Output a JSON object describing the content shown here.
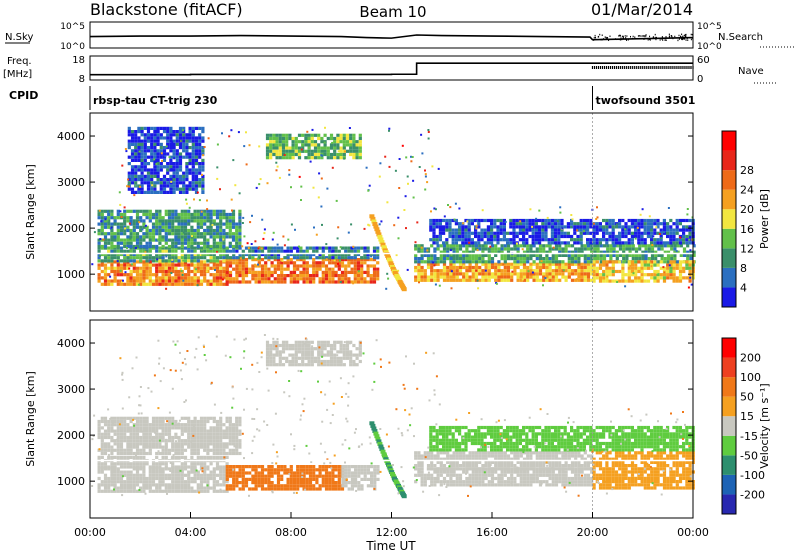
{
  "header": {
    "radar": "Blackstone (fitACF)",
    "beam": "Beam 10",
    "date": "01/Mar/2014"
  },
  "chart_data": [
    {
      "type": "line",
      "panel": "noise",
      "left_label": "N.Sky",
      "right_label": "N.Search",
      "left_ticks": [
        "10^5",
        "10^0"
      ],
      "right_ticks": [
        "10^5",
        "10^0"
      ],
      "x": [
        0,
        2,
        4,
        6,
        8,
        10,
        11,
        12,
        13,
        14,
        16,
        18,
        19.9,
        20,
        22,
        24
      ],
      "y": [
        2.2,
        2.3,
        2.3,
        2.4,
        2.3,
        2.2,
        2.0,
        1.9,
        2.5,
        2.4,
        2.3,
        2.2,
        2.1,
        1.6,
        1.8,
        2.0
      ],
      "ylim": [
        0,
        5
      ],
      "xlim": [
        0,
        24
      ]
    },
    {
      "type": "line",
      "panel": "frequency",
      "left_label": "Freq.",
      "left_unit": "[MHz]",
      "right_label": "Nave",
      "left_ticks": [
        "18",
        "8"
      ],
      "right_ticks": [
        "60",
        "0"
      ],
      "x": [
        0,
        4,
        8,
        12,
        12.9,
        13,
        16,
        20,
        24
      ],
      "y": [
        10.2,
        10.3,
        10.3,
        10.4,
        10.4,
        15.0,
        15.0,
        15.0,
        15.0
      ],
      "ylim": [
        8,
        18
      ],
      "xlim": [
        0,
        24
      ]
    },
    {
      "type": "timeline",
      "panel": "cpid",
      "label": "CPID",
      "segments": [
        {
          "start": 0,
          "end": 20,
          "name": "rbsp-tau CT-trig 230"
        },
        {
          "start": 20,
          "end": 24,
          "name": "twofsound 3501"
        }
      ]
    },
    {
      "type": "heatmap",
      "panel": "power",
      "ylabel": "Slant Range [km]",
      "xlabel": "",
      "xlim": [
        0,
        24
      ],
      "ylim": [
        200,
        4500
      ],
      "yticks": [
        1000,
        2000,
        3000,
        4000
      ],
      "colorbar_label": "Power [dB]",
      "colorbar_ticks": [
        4,
        8,
        12,
        16,
        20,
        24,
        28
      ],
      "colorbar_colors": [
        "#1a1ae6",
        "#2b6fc0",
        "#3a8f6a",
        "#62c04a",
        "#f2e640",
        "#f5a020",
        "#ee6a18",
        "#e8261a",
        "#ff0000"
      ],
      "bands": [
        {
          "x": [
            0.3,
            5.4
          ],
          "y": [
            800,
            1300
          ],
          "level": 26
        },
        {
          "x": [
            0.3,
            5.4
          ],
          "y": [
            1300,
            1600
          ],
          "level": 14
        },
        {
          "x": [
            5.4,
            11.5
          ],
          "y": [
            800,
            1350
          ],
          "level": 27
        },
        {
          "x": [
            5.4,
            11.5
          ],
          "y": [
            1350,
            1600
          ],
          "level": 10
        },
        {
          "x": [
            12.9,
            20.0
          ],
          "y": [
            900,
            1250
          ],
          "level": 24
        },
        {
          "x": [
            12.9,
            24.0
          ],
          "y": [
            1250,
            1650
          ],
          "level": 13
        },
        {
          "x": [
            20.0,
            24.0
          ],
          "y": [
            850,
            1300
          ],
          "level": 22
        },
        {
          "x": [
            0.3,
            6.0
          ],
          "y": [
            1600,
            2400
          ],
          "level": 12
        },
        {
          "x": [
            7.0,
            10.8
          ],
          "y": [
            3550,
            4050
          ],
          "level": 15
        },
        {
          "x": [
            1.5,
            4.5
          ],
          "y": [
            2800,
            4200
          ],
          "level": 6
        },
        {
          "x": [
            13.5,
            24.0
          ],
          "y": [
            1650,
            2200
          ],
          "level": 6
        }
      ],
      "features": [
        {
          "kind": "trace",
          "points": [
            [
              11.2,
              2300
            ],
            [
              11.7,
              1600
            ],
            [
              12.1,
              1100
            ],
            [
              12.5,
              700
            ]
          ],
          "level": 22
        }
      ]
    },
    {
      "type": "heatmap",
      "panel": "velocity",
      "ylabel": "Slant Range [km]",
      "xlabel": "Time UT",
      "xlim": [
        0,
        24
      ],
      "ylim": [
        200,
        4500
      ],
      "yticks": [
        1000,
        2000,
        3000,
        4000
      ],
      "xticks": [
        "00:00",
        "04:00",
        "08:00",
        "12:00",
        "16:00",
        "20:00",
        "00:00"
      ],
      "colorbar_label": "Velocity [m s⁻¹]",
      "colorbar_ticks": [
        "200",
        "100",
        "50",
        "15",
        "-15",
        "-50",
        "-100",
        "-200"
      ],
      "colorbar_colors": [
        "#2828b0",
        "#1d63b5",
        "#2d8f6e",
        "#5fcc3f",
        "#c8c8c0",
        "#f5a020",
        "#f07818",
        "#ee4020",
        "#ff0000"
      ],
      "bands": [
        {
          "x": [
            0.3,
            5.4
          ],
          "y": [
            800,
            1300
          ],
          "level": 0
        },
        {
          "x": [
            0.3,
            5.4
          ],
          "y": [
            1300,
            1550
          ],
          "level": 5
        },
        {
          "x": [
            5.4,
            10.0
          ],
          "y": [
            800,
            1350
          ],
          "level": -40
        },
        {
          "x": [
            10.0,
            11.5
          ],
          "y": [
            850,
            1350
          ],
          "level": 0
        },
        {
          "x": [
            12.9,
            20.0
          ],
          "y": [
            900,
            1300
          ],
          "level": 0
        },
        {
          "x": [
            12.9,
            20.0
          ],
          "y": [
            1300,
            1650
          ],
          "level": 5
        },
        {
          "x": [
            20.0,
            24.0
          ],
          "y": [
            850,
            1650
          ],
          "level": -20
        },
        {
          "x": [
            0.3,
            6.0
          ],
          "y": [
            1600,
            2400
          ],
          "level": 2
        },
        {
          "x": [
            7.0,
            10.8
          ],
          "y": [
            3550,
            4050
          ],
          "level": 0
        },
        {
          "x": [
            13.5,
            24.0
          ],
          "y": [
            1650,
            2200
          ],
          "level": 20
        }
      ],
      "features": [
        {
          "kind": "trace",
          "points": [
            [
              11.2,
              2300
            ],
            [
              11.7,
              1600
            ],
            [
              12.1,
              1100
            ],
            [
              12.5,
              700
            ]
          ],
          "level": 30
        }
      ]
    }
  ]
}
